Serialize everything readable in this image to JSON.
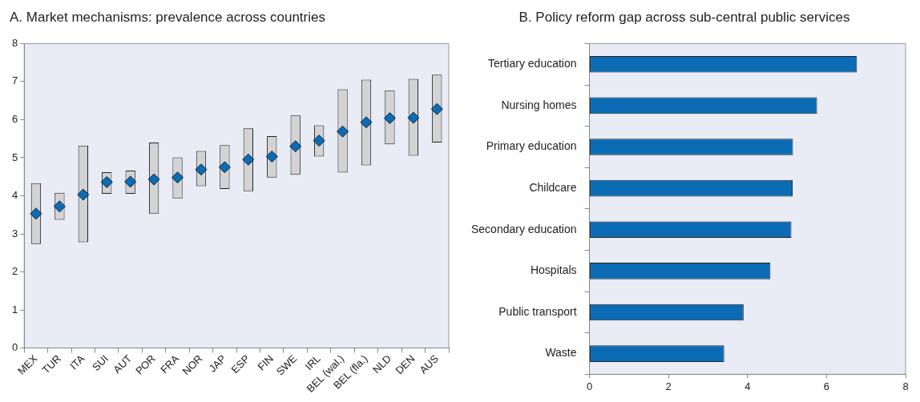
{
  "chart_data": [
    {
      "type": "bar",
      "title": "A. Market mechanisms: prevalence across countries",
      "categories": [
        "MEX",
        "TUR",
        "ITA",
        "SUI",
        "AUT",
        "POR",
        "FRA",
        "NOR",
        "JAP",
        "ESP",
        "FIN",
        "SWE",
        "IRL",
        "BEL (wal.)",
        "BEL (fla.)",
        "NLD",
        "DEN",
        "AUS"
      ],
      "series": [
        {
          "type": "bar",
          "color": "#d3d3d3",
          "values": [
            1.6,
            0.71,
            2.54,
            0.57,
            0.61,
            1.87,
            1.08,
            0.93,
            1.15,
            1.65,
            1.09,
            1.57,
            0.82,
            2.19,
            2.25,
            1.42,
            2.02,
            1.78
          ],
          "base": [
            2.73,
            3.37,
            2.78,
            4.05,
            4.05,
            3.53,
            3.93,
            4.25,
            4.18,
            4.12,
            4.48,
            4.55,
            5.03,
            4.61,
            4.8,
            5.35,
            5.05,
            5.4
          ]
        },
        {
          "type": "scatter",
          "color": "#0b6cb5",
          "marker": "diamond",
          "x": [
            "MEX",
            "TUR",
            "ITA",
            "SUI",
            "AUT",
            "POR",
            "FRA",
            "NOR",
            "JAP",
            "ESP",
            "FIN",
            "SWE",
            "IRL",
            "BEL (wal.)",
            "BEL (fla.)",
            "NLD",
            "DEN",
            "AUS"
          ],
          "values": [
            3.53,
            3.72,
            4.03,
            4.36,
            4.37,
            4.43,
            4.48,
            4.69,
            4.75,
            4.95,
            5.03,
            5.3,
            5.45,
            5.69,
            5.93,
            6.04,
            6.05,
            6.28
          ]
        }
      ],
      "ylim": [
        0,
        8
      ],
      "yticks": [
        0,
        1,
        2,
        3,
        4,
        5,
        6,
        7,
        8
      ],
      "grid": false
    },
    {
      "type": "bar",
      "orientation": "horizontal",
      "title": "B. Policy reform gap across sub-central public services",
      "categories": [
        "Tertiary education",
        "Nursing homes",
        "Primary education",
        "Childcare",
        "Secondary education",
        "Hospitals",
        "Public transport",
        "Waste"
      ],
      "values": [
        6.77,
        5.76,
        5.15,
        5.14,
        5.11,
        4.58,
        3.9,
        3.41
      ],
      "color": "#0b6cb5",
      "xlim": [
        0,
        8
      ],
      "xticks": [
        0,
        2,
        4,
        6,
        8
      ],
      "grid": false
    }
  ]
}
